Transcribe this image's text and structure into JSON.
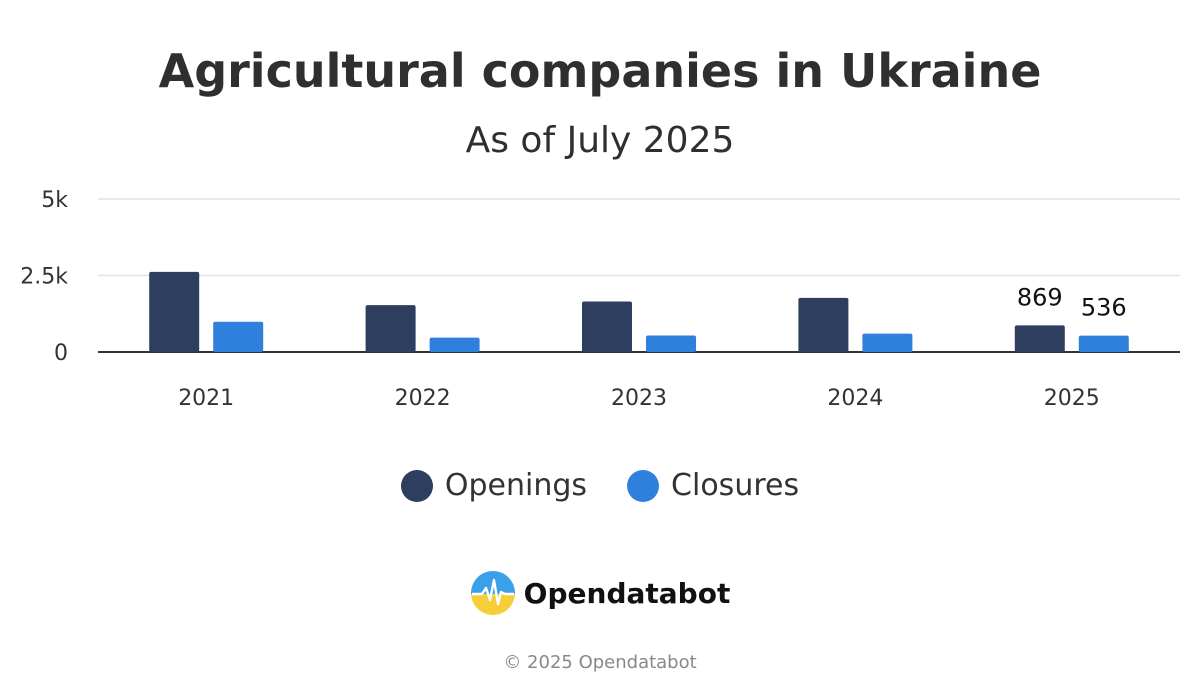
{
  "header": {
    "title": "Agricultural companies in Ukraine",
    "subtitle": "As of July 2025"
  },
  "chart_data": {
    "type": "bar",
    "title": "Agricultural companies in Ukraine",
    "subtitle": "As of July 2025",
    "categories": [
      "2021",
      "2022",
      "2023",
      "2024",
      "2025"
    ],
    "series": [
      {
        "name": "Openings",
        "color": "#2d3e5e",
        "values": [
          2620,
          1530,
          1650,
          1770,
          869
        ]
      },
      {
        "name": "Closures",
        "color": "#2f80dc",
        "values": [
          990,
          470,
          540,
          600,
          536
        ]
      }
    ],
    "ylim": [
      0,
      5000
    ],
    "y_ticks": [
      0,
      2500,
      5000
    ],
    "y_tick_labels": [
      "0",
      "2.5k",
      "5k"
    ],
    "data_labels": [
      {
        "series": "Openings",
        "category": "2025",
        "text": "869"
      },
      {
        "series": "Closures",
        "category": "2025",
        "text": "536"
      }
    ],
    "grid": true,
    "legend_position": "bottom"
  },
  "legend": {
    "items": [
      {
        "label": "Openings",
        "color": "#2d3e5e"
      },
      {
        "label": "Closures",
        "color": "#2f80dc"
      }
    ]
  },
  "brand": {
    "name": "Opendatabot",
    "logo_icon": "opendatabot-logo-icon"
  },
  "footer": {
    "copyright": "© 2025 Opendatabot"
  }
}
